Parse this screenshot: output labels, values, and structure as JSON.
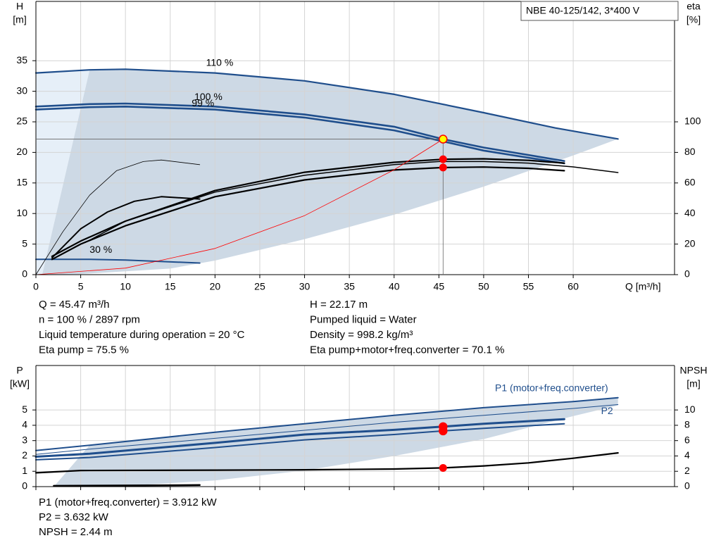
{
  "model": "NBE 40-125/142, 3*400 V",
  "chart_data": [
    {
      "type": "line",
      "x_label": "Q [m³/h]",
      "y_label": "H",
      "y_unit": "[m]",
      "y2_label": "eta",
      "y2_unit": "[%]",
      "xlim": [
        0,
        71
      ],
      "ylim": [
        0,
        44.7
      ],
      "y2lim": [
        0,
        178.8
      ],
      "xticks": [
        0,
        5,
        10,
        15,
        20,
        25,
        30,
        35,
        40,
        45,
        50,
        55,
        60
      ],
      "yticks": [
        0,
        5,
        10,
        15,
        20,
        25,
        30,
        35
      ],
      "y2ticks": [
        0,
        20,
        40,
        60,
        80,
        100
      ],
      "grid": true,
      "areas": [
        {
          "color": "#e6eff8",
          "x": [
            0,
            0,
            6,
            0.7
          ],
          "values": [
            0,
            33,
            33.5,
            0
          ]
        },
        {
          "color": "#cdd9e5",
          "x": [
            6,
            10,
            20,
            30,
            40,
            50,
            58,
            65,
            60,
            50,
            40,
            30,
            20,
            15,
            5,
            0.7
          ],
          "values": [
            33.5,
            33.6,
            33.0,
            31.7,
            29.5,
            26.5,
            24,
            22.2,
            19.5,
            14.4,
            9.8,
            5.8,
            2.3,
            1,
            0.1,
            0
          ]
        }
      ],
      "series": [
        {
          "name": "110 %",
          "color": "#1f4e8c",
          "width": 2.2,
          "x": [
            0,
            6,
            10,
            20,
            30,
            40,
            50,
            58,
            65
          ],
          "values": [
            33,
            33.5,
            33.6,
            33.0,
            31.7,
            29.5,
            26.5,
            24,
            22.2
          ]
        },
        {
          "name": "100 %",
          "color": "#1f4e8c",
          "width": 2.6,
          "x": [
            0,
            6,
            10,
            20,
            30,
            40,
            45.47,
            50,
            59
          ],
          "values": [
            27.5,
            27.9,
            28.0,
            27.5,
            26.2,
            24.2,
            22.17,
            20.8,
            18.6
          ]
        },
        {
          "name": "99 %",
          "color": "#1f4e8c",
          "width": 2.6,
          "x": [
            0,
            6,
            10,
            20,
            30,
            40,
            50,
            59
          ],
          "values": [
            27.0,
            27.4,
            27.5,
            27.0,
            25.7,
            23.6,
            20.3,
            18.2
          ]
        },
        {
          "name": "30 %",
          "color": "#1f4e8c",
          "width": 2,
          "x": [
            0,
            6,
            10,
            18.3
          ],
          "values": [
            2.5,
            2.5,
            2.4,
            1.9
          ]
        },
        {
          "color": "#000000",
          "width": 1.5,
          "axis": "y2",
          "x": [
            5.5,
            10,
            20,
            30,
            40,
            45,
            50,
            55,
            60,
            65
          ],
          "values": [
            21,
            35,
            54,
            65,
            72,
            74,
            74,
            73,
            70.5,
            66.8
          ]
        },
        {
          "color": "#000000",
          "width": 2.2,
          "axis": "y2",
          "x": [
            1.8,
            5,
            10,
            20,
            30,
            40,
            45.47,
            50,
            55,
            59
          ],
          "values": [
            12,
            22,
            35,
            55,
            67,
            73.5,
            75.5,
            75.8,
            74.8,
            73
          ]
        },
        {
          "color": "#000000",
          "width": 2.2,
          "axis": "y2",
          "x": [
            1.8,
            5,
            10,
            20,
            30,
            40,
            45.47,
            50,
            55,
            59
          ],
          "values": [
            10,
            20,
            32,
            51,
            62,
            68.5,
            70.1,
            70.4,
            69.6,
            68
          ]
        },
        {
          "color": "#000000",
          "width": 2,
          "axis": "y2",
          "x": [
            1.8,
            5,
            8,
            11,
            14,
            18.3
          ],
          "values": [
            11,
            30,
            41,
            48,
            51,
            49.5
          ]
        },
        {
          "color": "#000000",
          "width": 0.8,
          "axis": "y2",
          "x": [
            0,
            3,
            6,
            9,
            12,
            14,
            18.3
          ],
          "values": [
            0,
            28,
            52,
            68,
            74,
            75,
            72
          ]
        },
        {
          "color": "#ff0000",
          "width": 0.8,
          "x": [
            0,
            10,
            20,
            30,
            40,
            45.47
          ],
          "values": [
            0,
            1.07,
            4.29,
            9.65,
            17.15,
            22.17
          ]
        }
      ],
      "operating_point": {
        "x": 45.47,
        "y": [
          22.17
        ],
        "y2": [
          75.5,
          70.1
        ],
        "y_fill": "#ffff00",
        "y2_fill": "#ff0000",
        "stroke": "#ff0000",
        "crosshair": true
      }
    },
    {
      "type": "line",
      "y_label": "P",
      "y_unit": "[kW]",
      "y2_label": "NPSH",
      "y2_unit": "[m]",
      "xlim": [
        0,
        71
      ],
      "ylim": [
        0,
        7.9
      ],
      "y2lim": [
        0,
        15.8
      ],
      "yticks": [
        0,
        1,
        2,
        3,
        4,
        5
      ],
      "y2ticks": [
        0,
        2,
        4,
        6,
        8,
        10
      ],
      "grid": true,
      "areas": [
        {
          "color": "#cdd9e5",
          "x": [
            6,
            20,
            30,
            40,
            50,
            60,
            65,
            65,
            60,
            50,
            40,
            30,
            20,
            10,
            2
          ],
          "values": [
            2.7,
            3.55,
            4.1,
            4.65,
            5.15,
            5.55,
            5.8,
            5.3,
            4.6,
            3.1,
            2.0,
            1.05,
            0.4,
            0.05,
            0
          ]
        }
      ],
      "series": [
        {
          "name": "P1 (motor+freq.converter)",
          "color": "#1f4e8c",
          "width": 2,
          "x": [
            0,
            6,
            20,
            30,
            40,
            50,
            60,
            65
          ],
          "values": [
            2.35,
            2.7,
            3.55,
            4.1,
            4.65,
            5.15,
            5.55,
            5.8
          ]
        },
        {
          "name": "P2",
          "color": "#1f4e8c",
          "width": 1,
          "x": [
            0,
            6,
            20,
            40,
            60,
            65
          ],
          "values": [
            2.1,
            2.45,
            3.15,
            4.2,
            5.1,
            5.35
          ]
        },
        {
          "color": "#1f4e8c",
          "width": 3,
          "x": [
            0,
            6,
            20,
            30,
            40,
            45.47,
            50,
            59
          ],
          "values": [
            1.95,
            2.15,
            2.85,
            3.4,
            3.7,
            3.912,
            4.1,
            4.4
          ]
        },
        {
          "color": "#1f4e8c",
          "width": 2,
          "x": [
            0,
            6,
            20,
            30,
            40,
            45.47,
            50,
            59
          ],
          "values": [
            1.75,
            1.9,
            2.55,
            3.05,
            3.4,
            3.632,
            3.8,
            4.1
          ]
        },
        {
          "color": "#000000",
          "width": 2.5,
          "x": [
            2,
            18.3
          ],
          "values": [
            0.05,
            0.1
          ]
        },
        {
          "color": "#000000",
          "width": 2.2,
          "axis": "y2",
          "x": [
            0,
            5,
            20,
            30,
            40,
            45.47,
            50,
            55,
            60,
            65
          ],
          "values": [
            1.8,
            2.1,
            2.15,
            2.2,
            2.3,
            2.44,
            2.7,
            3.1,
            3.7,
            4.4
          ]
        }
      ],
      "operating_point": {
        "x": 45.47,
        "y": [
          3.912,
          3.632
        ],
        "y2": [
          2.44
        ],
        "y_fill": "#ff0000",
        "y2_fill": "#ff0000",
        "stroke": "#ff0000",
        "crosshair": false
      }
    }
  ],
  "info_top": {
    "left": [
      "Q = 45.47 m³/h",
      "n = 100 % / 2897 rpm",
      "Liquid temperature during operation = 20 °C",
      "Eta pump = 75.5 %"
    ],
    "right": [
      "H = 22.17 m",
      "Pumped liquid = Water",
      "Density = 998.2 kg/m³",
      "Eta pump+motor+freq.converter = 70.1 %"
    ]
  },
  "info_bottom": [
    "P1 (motor+freq.converter) = 3.912 kW",
    "P2 = 3.632 kW",
    "NPSH = 2.44 m"
  ]
}
